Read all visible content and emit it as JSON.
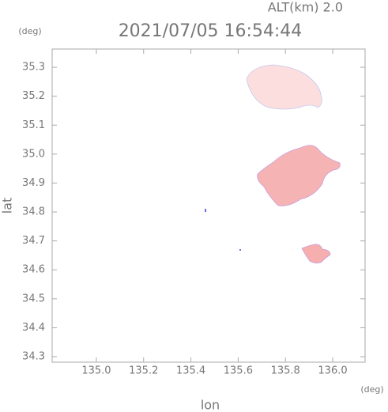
{
  "chart_data": {
    "type": "map",
    "title": "2021/07/05 16:54:44",
    "annotation": "ALT(km) 2.0",
    "ylabel": "lat",
    "xlabel": "lon",
    "y_unit": "(deg)",
    "x_unit": "(deg)",
    "xlim": [
      134.813,
      136.137
    ],
    "ylim": [
      34.281,
      35.363
    ],
    "xticks": [
      {
        "value": 135.0,
        "label": "135.0"
      },
      135.2,
      135.4,
      135.6,
      135.8,
      {
        "value": 136.0,
        "label": "136.0"
      }
    ],
    "yticks": [
      34.3,
      34.4,
      34.5,
      34.6,
      34.7,
      34.8,
      34.9,
      {
        "value": 35.0,
        "label": "35.0"
      },
      35.1,
      35.2,
      35.3
    ]
  }
}
